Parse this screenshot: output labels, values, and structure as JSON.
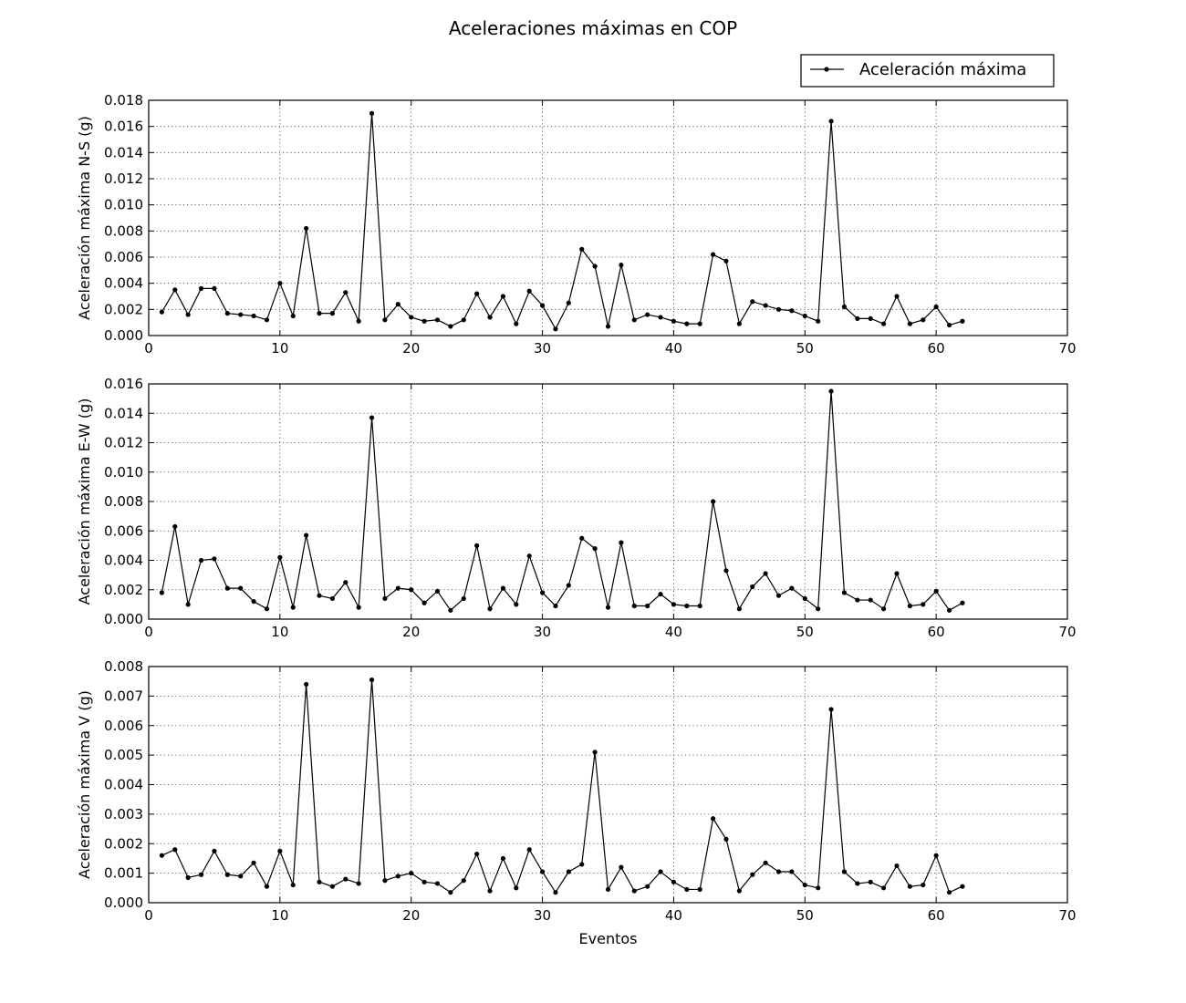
{
  "figure": {
    "title": "Aceleraciones máximas en COP",
    "legend": {
      "label": "Aceleración máxima",
      "placement": "top-right"
    }
  },
  "chart_data": [
    {
      "type": "line",
      "title": "",
      "xlabel": "",
      "ylabel": "Aceleración máxima N-S (g)",
      "xlim": [
        0,
        70
      ],
      "ylim": [
        0,
        0.018
      ],
      "xticks": [
        0,
        10,
        20,
        30,
        40,
        50,
        60,
        70
      ],
      "yticks": [
        0.0,
        0.002,
        0.004,
        0.006,
        0.008,
        0.01,
        0.012,
        0.014,
        0.016,
        0.018
      ],
      "ytick_labels": [
        "0.000",
        "0.002",
        "0.004",
        "0.006",
        "0.008",
        "0.010",
        "0.012",
        "0.014",
        "0.016",
        "0.018"
      ],
      "grid": true,
      "series": [
        {
          "name": "Aceleración máxima",
          "x": [
            1,
            2,
            3,
            4,
            5,
            6,
            7,
            8,
            9,
            10,
            11,
            12,
            13,
            14,
            15,
            16,
            17,
            18,
            19,
            20,
            21,
            22,
            23,
            24,
            25,
            26,
            27,
            28,
            29,
            30,
            31,
            32,
            33,
            34,
            35,
            36,
            37,
            38,
            39,
            40,
            41,
            42,
            43,
            44,
            45,
            46,
            47,
            48,
            49,
            50,
            51,
            52,
            53,
            54,
            55,
            56,
            57,
            58,
            59,
            60,
            61,
            62
          ],
          "y": [
            0.0018,
            0.0035,
            0.0016,
            0.0036,
            0.0036,
            0.0017,
            0.0016,
            0.0015,
            0.0012,
            0.004,
            0.0015,
            0.0082,
            0.0017,
            0.0017,
            0.0033,
            0.0011,
            0.017,
            0.0012,
            0.0024,
            0.0014,
            0.0011,
            0.0012,
            0.0007,
            0.0012,
            0.0032,
            0.0014,
            0.003,
            0.0009,
            0.0034,
            0.0023,
            0.0005,
            0.0025,
            0.0066,
            0.0053,
            0.0007,
            0.0054,
            0.0012,
            0.0016,
            0.0014,
            0.0011,
            0.0009,
            0.0009,
            0.0062,
            0.0057,
            0.0009,
            0.0026,
            0.0023,
            0.002,
            0.0019,
            0.0015,
            0.0011,
            0.0164,
            0.0022,
            0.0013,
            0.0013,
            0.0009,
            0.003,
            0.0009,
            0.0012,
            0.0022,
            0.0008,
            0.0011
          ]
        }
      ]
    },
    {
      "type": "line",
      "title": "",
      "xlabel": "",
      "ylabel": "Aceleración máxima E-W (g)",
      "xlim": [
        0,
        70
      ],
      "ylim": [
        0,
        0.016
      ],
      "xticks": [
        0,
        10,
        20,
        30,
        40,
        50,
        60,
        70
      ],
      "yticks": [
        0.0,
        0.002,
        0.004,
        0.006,
        0.008,
        0.01,
        0.012,
        0.014,
        0.016
      ],
      "ytick_labels": [
        "0.000",
        "0.002",
        "0.004",
        "0.006",
        "0.008",
        "0.010",
        "0.012",
        "0.014",
        "0.016"
      ],
      "grid": true,
      "series": [
        {
          "name": "Aceleración máxima",
          "x": [
            1,
            2,
            3,
            4,
            5,
            6,
            7,
            8,
            9,
            10,
            11,
            12,
            13,
            14,
            15,
            16,
            17,
            18,
            19,
            20,
            21,
            22,
            23,
            24,
            25,
            26,
            27,
            28,
            29,
            30,
            31,
            32,
            33,
            34,
            35,
            36,
            37,
            38,
            39,
            40,
            41,
            42,
            43,
            44,
            45,
            46,
            47,
            48,
            49,
            50,
            51,
            52,
            53,
            54,
            55,
            56,
            57,
            58,
            59,
            60,
            61,
            62
          ],
          "y": [
            0.0018,
            0.0063,
            0.001,
            0.004,
            0.0041,
            0.0021,
            0.0021,
            0.0012,
            0.0007,
            0.0042,
            0.0008,
            0.0057,
            0.0016,
            0.0014,
            0.0025,
            0.0008,
            0.0137,
            0.0014,
            0.0021,
            0.002,
            0.0011,
            0.0019,
            0.0006,
            0.0014,
            0.005,
            0.0007,
            0.0021,
            0.001,
            0.0043,
            0.0018,
            0.0009,
            0.0023,
            0.0055,
            0.0048,
            0.0008,
            0.0052,
            0.0009,
            0.0009,
            0.0017,
            0.001,
            0.0009,
            0.0009,
            0.008,
            0.0033,
            0.0007,
            0.0022,
            0.0031,
            0.0016,
            0.0021,
            0.0014,
            0.0007,
            0.0155,
            0.0018,
            0.0013,
            0.0013,
            0.0007,
            0.0031,
            0.0009,
            0.001,
            0.0019,
            0.0006,
            0.0011
          ]
        }
      ]
    },
    {
      "type": "line",
      "title": "",
      "xlabel": "Eventos",
      "ylabel": "Aceleración máxima V (g)",
      "xlim": [
        0,
        70
      ],
      "ylim": [
        0,
        0.008
      ],
      "xticks": [
        0,
        10,
        20,
        30,
        40,
        50,
        60,
        70
      ],
      "yticks": [
        0.0,
        0.001,
        0.002,
        0.003,
        0.004,
        0.005,
        0.006,
        0.007,
        0.008
      ],
      "ytick_labels": [
        "0.000",
        "0.001",
        "0.002",
        "0.003",
        "0.004",
        "0.005",
        "0.006",
        "0.007",
        "0.008"
      ],
      "grid": true,
      "series": [
        {
          "name": "Aceleración máxima",
          "x": [
            1,
            2,
            3,
            4,
            5,
            6,
            7,
            8,
            9,
            10,
            11,
            12,
            13,
            14,
            15,
            16,
            17,
            18,
            19,
            20,
            21,
            22,
            23,
            24,
            25,
            26,
            27,
            28,
            29,
            30,
            31,
            32,
            33,
            34,
            35,
            36,
            37,
            38,
            39,
            40,
            41,
            42,
            43,
            44,
            45,
            46,
            47,
            48,
            49,
            50,
            51,
            52,
            53,
            54,
            55,
            56,
            57,
            58,
            59,
            60,
            61,
            62
          ],
          "y": [
            0.0016,
            0.0018,
            0.00085,
            0.00095,
            0.00175,
            0.00095,
            0.0009,
            0.00135,
            0.00055,
            0.00175,
            0.0006,
            0.0074,
            0.0007,
            0.00055,
            0.0008,
            0.00065,
            0.00755,
            0.00075,
            0.0009,
            0.001,
            0.0007,
            0.00065,
            0.00035,
            0.00075,
            0.00165,
            0.0004,
            0.0015,
            0.0005,
            0.0018,
            0.00105,
            0.00035,
            0.00105,
            0.0013,
            0.0051,
            0.00045,
            0.0012,
            0.0004,
            0.00055,
            0.00105,
            0.0007,
            0.00045,
            0.00045,
            0.00285,
            0.00215,
            0.0004,
            0.00095,
            0.00135,
            0.00105,
            0.00105,
            0.0006,
            0.0005,
            0.00655,
            0.00105,
            0.00065,
            0.0007,
            0.0005,
            0.00125,
            0.00055,
            0.0006,
            0.0016,
            0.00035,
            0.00055
          ]
        }
      ]
    }
  ]
}
